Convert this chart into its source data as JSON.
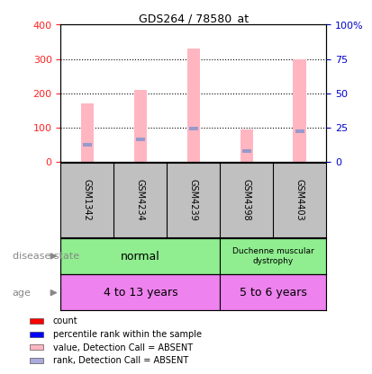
{
  "title": "GDS264 / 78580_at",
  "samples": [
    "GSM1342",
    "GSM4234",
    "GSM4239",
    "GSM4398",
    "GSM4403"
  ],
  "pink_bar_heights": [
    170,
    210,
    330,
    95,
    300
  ],
  "blue_marker_values": [
    50,
    65,
    97,
    32,
    90
  ],
  "ylim": [
    0,
    400
  ],
  "yticks": [
    0,
    100,
    200,
    300,
    400
  ],
  "y2ticks": [
    0,
    25,
    50,
    75,
    100
  ],
  "y2ticklabels": [
    "0",
    "25",
    "50",
    "75",
    "100%"
  ],
  "pink_bar_color": "#FFB6C1",
  "blue_marker_color": "#9999CC",
  "sample_bg_color": "#C0C0C0",
  "left_axis_color": "#FF2222",
  "right_axis_color": "#0000CC",
  "normal_color": "#90EE90",
  "age_color": "#EE82EE",
  "label_color": "#888888",
  "legend_items": [
    {
      "color": "#FF0000",
      "label": "count"
    },
    {
      "color": "#0000FF",
      "label": "percentile rank within the sample"
    },
    {
      "color": "#FFB6C1",
      "label": "value, Detection Call = ABSENT"
    },
    {
      "color": "#AAAADD",
      "label": "rank, Detection Call = ABSENT"
    }
  ]
}
